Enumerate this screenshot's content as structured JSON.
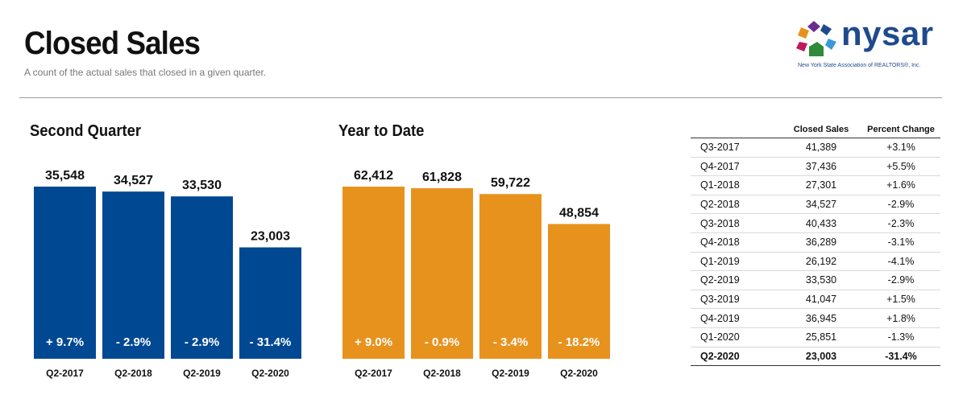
{
  "header": {
    "title": "Closed Sales",
    "subtitle": "A count of the actual sales that closed in a given quarter."
  },
  "logo": {
    "word": "nysar",
    "tagline": "New York State Association of REALTORS®, Inc."
  },
  "colors": {
    "blue": "#014893",
    "orange": "#e8921e"
  },
  "chart_data": [
    {
      "type": "bar",
      "title": "Second Quarter",
      "categories": [
        "Q2-2017",
        "Q2-2018",
        "Q2-2019",
        "Q2-2020"
      ],
      "values": [
        35548,
        34527,
        33530,
        23003
      ],
      "value_labels": [
        "35,548",
        "34,527",
        "33,530",
        "23,003"
      ],
      "change_labels": [
        "+ 9.7%",
        "- 2.9%",
        "- 2.9%",
        "- 31.4%"
      ],
      "ylim": [
        0,
        35548
      ],
      "color": "#014893"
    },
    {
      "type": "bar",
      "title": "Year to Date",
      "categories": [
        "Q2-2017",
        "Q2-2018",
        "Q2-2019",
        "Q2-2020"
      ],
      "values": [
        62412,
        61828,
        59722,
        48854
      ],
      "value_labels": [
        "62,412",
        "61,828",
        "59,722",
        "48,854"
      ],
      "change_labels": [
        "+ 9.0%",
        "- 0.9%",
        "- 3.4%",
        "- 18.2%"
      ],
      "ylim": [
        0,
        62412
      ],
      "color": "#e8921e"
    },
    {
      "type": "table",
      "columns": [
        "",
        "Closed Sales",
        "Percent Change"
      ],
      "rows": [
        [
          "Q3-2017",
          "41,389",
          "+3.1%"
        ],
        [
          "Q4-2017",
          "37,436",
          "+5.5%"
        ],
        [
          "Q1-2018",
          "27,301",
          "+1.6%"
        ],
        [
          "Q2-2018",
          "34,527",
          "-2.9%"
        ],
        [
          "Q3-2018",
          "40,433",
          "-2.3%"
        ],
        [
          "Q4-2018",
          "36,289",
          "-3.1%"
        ],
        [
          "Q1-2019",
          "26,192",
          "-4.1%"
        ],
        [
          "Q2-2019",
          "33,530",
          "-2.9%"
        ],
        [
          "Q3-2019",
          "41,047",
          "+1.5%"
        ],
        [
          "Q4-2019",
          "36,945",
          "+1.8%"
        ],
        [
          "Q1-2020",
          "25,851",
          "-1.3%"
        ],
        [
          "Q2-2020",
          "23,003",
          "-31.4%"
        ]
      ]
    }
  ]
}
